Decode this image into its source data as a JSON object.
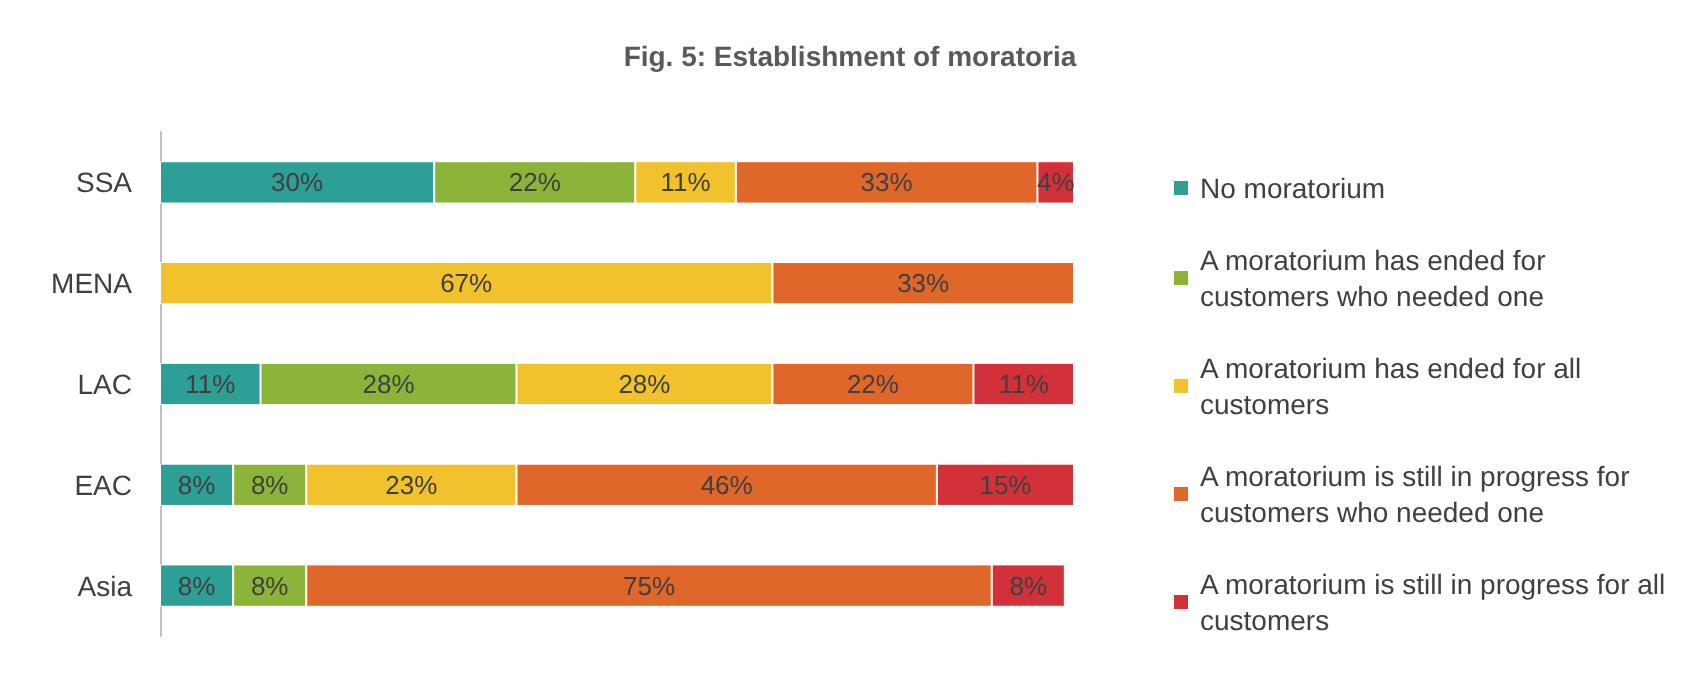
{
  "chart_data": {
    "type": "bar",
    "title": "Fig. 5: Establishment of moratoria",
    "orientation": "horizontal",
    "stacked": true,
    "legend": "right",
    "categories": [
      "SSA",
      "MENA",
      "LAC",
      "EAC",
      "Asia"
    ],
    "series": [
      {
        "name": "No moratorium",
        "color": "#2e9f96",
        "values": [
          30,
          null,
          11,
          8,
          8
        ],
        "value_labels": [
          "30%",
          null,
          "11%",
          "8%",
          "8%"
        ]
      },
      {
        "name": "A moratorium has ended for customers who needed one",
        "color": "#8cb43a",
        "values": [
          22,
          null,
          28,
          8,
          8
        ],
        "value_labels": [
          "22%",
          null,
          "28%",
          "8%",
          "8%"
        ]
      },
      {
        "name": "A moratorium has ended for all customers",
        "color": "#f2c12e",
        "values": [
          11,
          67,
          28,
          23,
          null
        ],
        "value_labels": [
          "11%",
          "67%",
          "28%",
          "23%",
          null
        ]
      },
      {
        "name": "A moratorium is still in progress for customers who needed one",
        "color": "#e0672a",
        "values": [
          33,
          33,
          22,
          46,
          75
        ],
        "value_labels": [
          "33%",
          "33%",
          "22%",
          "46%",
          "75%"
        ]
      },
      {
        "name": "A moratorium is still in progress for all customers",
        "color": "#d2313a",
        "values": [
          4,
          null,
          11,
          15,
          8
        ],
        "value_labels": [
          "4%",
          null,
          "11%",
          "15%",
          "8%"
        ]
      }
    ]
  }
}
